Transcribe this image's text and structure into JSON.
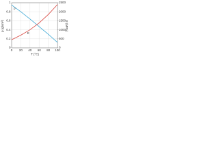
{
  "chart_data": {
    "type": "line",
    "x_label": "T (°C)",
    "y_label": "ρ (g/cm³)",
    "y2_label": "E (MPa)",
    "annotations": [
      "ρ",
      "E"
    ],
    "x": [
      0,
      20,
      40,
      60,
      80,
      100
    ],
    "series": [
      {
        "name": "ρ",
        "color": "#3fa9d6",
        "values": [
          0.95,
          0.8,
          0.64,
          0.47,
          0.3,
          0.12
        ]
      },
      {
        "name": "E",
        "color": "#d9463f",
        "axis": "y2",
        "values": [
          450,
          700,
          1000,
          1380,
          1850,
          2400
        ]
      }
    ],
    "xlim": [
      0,
      100
    ],
    "xticks": [
      0,
      20,
      40,
      60,
      80,
      100
    ],
    "ylim": [
      0,
      1
    ],
    "yticks": [
      0,
      0.2,
      0.4,
      0.6,
      0.8,
      1
    ],
    "y2lim": [
      0,
      2500
    ],
    "y2ticks": [
      0,
      500,
      1000,
      1500,
      2000,
      2500
    ],
    "grid": true
  }
}
